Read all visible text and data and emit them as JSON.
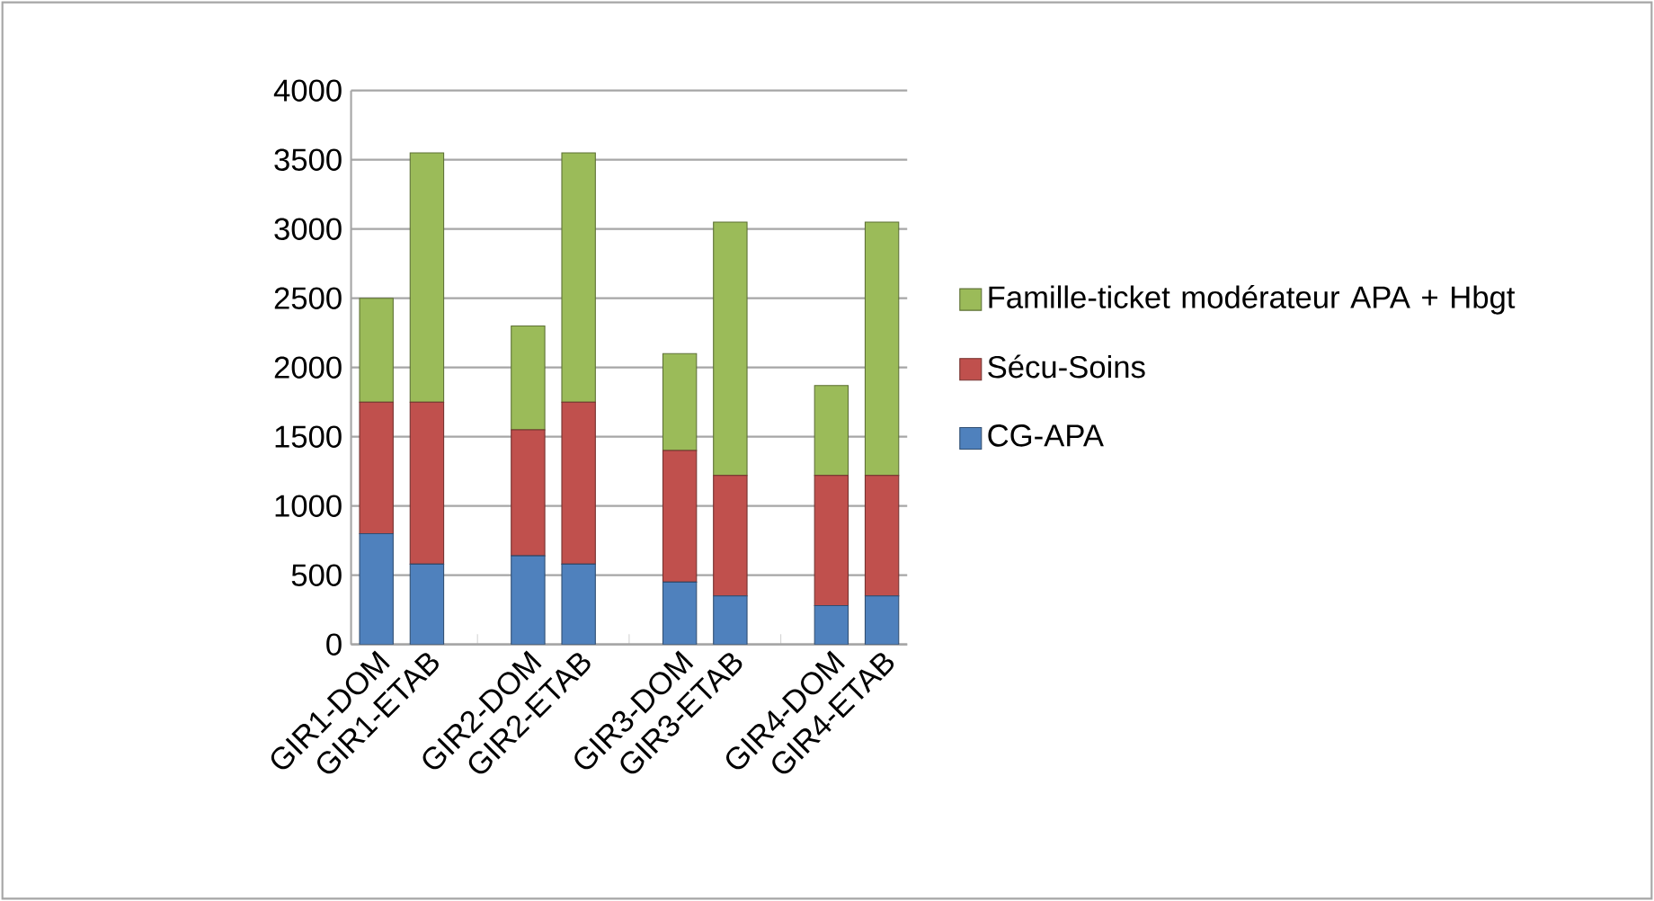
{
  "chart_data": {
    "type": "bar",
    "stacked": true,
    "categories": [
      "GIR1-DOM",
      "GIR1-ETAB",
      null,
      "GIR2-DOM",
      "GIR2-ETAB",
      null,
      "GIR3-DOM",
      "GIR3-ETAB",
      null,
      "GIR4-DOM",
      "GIR4-ETAB"
    ],
    "series": [
      {
        "name": "CG-APA",
        "color": "#4f81bd",
        "values": [
          800,
          580,
          null,
          640,
          580,
          null,
          450,
          350,
          null,
          280,
          350
        ]
      },
      {
        "name": "Sécu-Soins",
        "color": "#c0504d",
        "values": [
          950,
          1170,
          null,
          910,
          1170,
          null,
          950,
          870,
          null,
          940,
          870
        ]
      },
      {
        "name": "Famille-ticket modérateur APA + Hbgt",
        "color": "#9bbb59",
        "values": [
          750,
          1800,
          null,
          750,
          1800,
          null,
          700,
          1830,
          null,
          650,
          1830
        ]
      }
    ],
    "ylim": [
      0,
      4000
    ],
    "yticks": [
      0,
      500,
      1000,
      1500,
      2000,
      2500,
      3000,
      3500,
      4000
    ],
    "grid": "y",
    "legend": "right"
  }
}
